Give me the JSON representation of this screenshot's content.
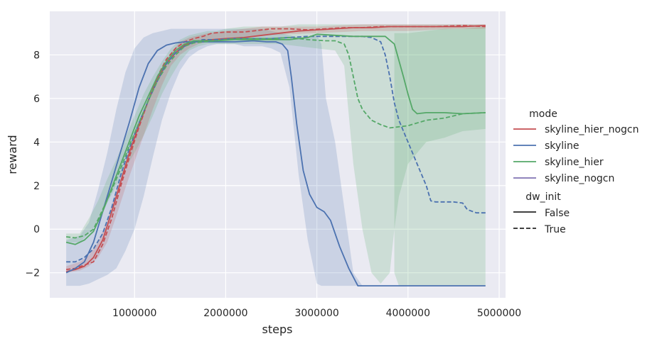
{
  "chart_data": {
    "type": "line",
    "xlabel": "steps",
    "ylabel": "reward",
    "xlim": [
      70000,
      5070000
    ],
    "ylim": [
      -3.15,
      10.0
    ],
    "xticks": [
      1000000,
      2000000,
      3000000,
      4000000,
      5000000
    ],
    "xtick_labels": [
      "1000000",
      "2000000",
      "3000000",
      "4000000",
      "5000000"
    ],
    "yticks": [
      -2,
      0,
      2,
      4,
      6,
      8
    ],
    "ytick_labels": [
      "−2",
      "0",
      "2",
      "4",
      "6",
      "8"
    ],
    "grid": true,
    "background": "#eaeaf2",
    "legend": {
      "placement": "right",
      "mode_title": "mode",
      "mode_entries": [
        {
          "label": "skyline_hier_nogcn",
          "color": "#c44e52"
        },
        {
          "label": "skyline",
          "color": "#4c72b0"
        },
        {
          "label": "skyline_hier",
          "color": "#55a868"
        },
        {
          "label": "skyline_nogcn",
          "color": "#8172b2"
        }
      ],
      "dw_init_title": "dw_init",
      "dw_init_entries": [
        {
          "label": "False",
          "style": "solid"
        },
        {
          "label": "True",
          "style": "dashed"
        }
      ]
    },
    "bands": [
      {
        "color": "#4c72b0",
        "x": [
          250000,
          400000,
          500000,
          600000,
          700000,
          800000,
          900000,
          1000000,
          1100000,
          1200000,
          1300000,
          1400000,
          1500000,
          1600000,
          1700000,
          1800000,
          1900000,
          2000000,
          2100000,
          2200000,
          2300000,
          2400000,
          2500000,
          2600000,
          2700000,
          2800000,
          2900000,
          3000000,
          3050000,
          3100000,
          3200000,
          3300000,
          3400000,
          3500000,
          3600000,
          3700000,
          3800000,
          3900000,
          4000000,
          4200000,
          4400000,
          4600000,
          4850000
        ],
        "lower": [
          -2.6,
          -2.6,
          -2.5,
          -2.3,
          -2.1,
          -1.8,
          -1.0,
          0.0,
          1.5,
          3.3,
          5.0,
          6.3,
          7.3,
          7.9,
          8.2,
          8.4,
          8.5,
          8.5,
          8.5,
          8.4,
          8.4,
          8.4,
          8.3,
          8.1,
          6.5,
          2.5,
          -0.5,
          -2.5,
          -2.6,
          -2.6,
          -2.6,
          -2.6,
          -2.6,
          -2.6,
          -2.6,
          -2.6,
          -2.6,
          -2.6,
          -2.6,
          -2.6,
          -2.6,
          -2.6,
          -2.6
        ],
        "upper": [
          -0.5,
          -0.3,
          0.3,
          1.8,
          3.5,
          5.5,
          7.2,
          8.3,
          8.8,
          9.0,
          9.1,
          9.2,
          9.2,
          9.2,
          9.2,
          9.2,
          9.2,
          9.2,
          9.2,
          9.2,
          9.2,
          9.2,
          9.1,
          9.0,
          8.9,
          8.8,
          8.8,
          8.9,
          8.5,
          6.0,
          4.0,
          1.0,
          -2.0,
          -2.6,
          -2.6,
          -2.6,
          -2.6,
          -2.6,
          -2.6,
          -2.6,
          -2.6,
          -2.6,
          -2.6
        ]
      },
      {
        "color": "#55a868",
        "x": [
          250000,
          400000,
          500000,
          600000,
          700000,
          800000,
          900000,
          1000000,
          1100000,
          1200000,
          1300000,
          1400000,
          1500000,
          1600000,
          1700000,
          1800000,
          1900000,
          2000000,
          2200000,
          2400000,
          2600000,
          2800000,
          3000000,
          3200000,
          3300000,
          3400000,
          3500000,
          3600000,
          3700000,
          3800000,
          3850000,
          3900000,
          4000000,
          4200000,
          4400000,
          4600000,
          4850000
        ],
        "lower": [
          -0.6,
          -0.6,
          -0.2,
          0.3,
          1.2,
          2.0,
          2.8,
          3.5,
          4.3,
          5.2,
          6.2,
          7.0,
          7.7,
          8.2,
          8.4,
          8.5,
          8.5,
          8.5,
          8.5,
          8.5,
          8.5,
          8.4,
          8.3,
          8.2,
          7.5,
          3.0,
          0.0,
          -2.0,
          -2.5,
          -2.0,
          0.0,
          1.5,
          3.0,
          4.0,
          4.2,
          4.5,
          4.6
        ],
        "upper": [
          -0.2,
          -0.2,
          0.5,
          1.3,
          2.3,
          3.2,
          4.2,
          5.2,
          6.2,
          7.0,
          7.7,
          8.3,
          8.7,
          8.9,
          9.0,
          9.1,
          9.1,
          9.2,
          9.3,
          9.3,
          9.3,
          9.4,
          9.4,
          9.4,
          9.4,
          9.4,
          9.4,
          9.4,
          9.4,
          9.4,
          9.4,
          9.4,
          9.4,
          9.4,
          9.4,
          9.4,
          9.4
        ]
      },
      {
        "color": "#55a868",
        "x": [
          3850000,
          3900000,
          4000000,
          4200000,
          4400000,
          4600000,
          4850000
        ],
        "lower": [
          -2.0,
          -2.6,
          -2.6,
          -2.6,
          -2.6,
          -2.6,
          -2.6
        ],
        "upper": [
          9.0,
          9.0,
          9.0,
          9.1,
          9.2,
          9.2,
          9.3
        ]
      },
      {
        "color": "#c44e52",
        "x": [
          250000,
          400000,
          500000,
          600000,
          700000,
          800000,
          900000,
          1000000,
          1100000,
          1200000,
          1300000,
          1400000,
          1500000,
          1600000,
          1700000,
          1800000,
          2000000,
          2400000,
          3000000,
          3500000,
          4000000,
          4500000,
          4850000
        ],
        "lower": [
          -2.0,
          -1.9,
          -1.7,
          -1.3,
          -0.6,
          0.6,
          1.9,
          3.1,
          4.3,
          5.5,
          6.6,
          7.5,
          8.0,
          8.3,
          8.5,
          8.6,
          8.7,
          8.9,
          9.0,
          9.1,
          9.1,
          9.2,
          9.2
        ],
        "upper": [
          -1.7,
          -1.5,
          -1.2,
          -0.6,
          0.4,
          1.8,
          3.0,
          4.2,
          5.3,
          6.4,
          7.4,
          8.1,
          8.6,
          8.8,
          8.9,
          9.0,
          9.1,
          9.3,
          9.3,
          9.4,
          9.4,
          9.4,
          9.4
        ]
      }
    ],
    "series": [
      {
        "mode": "skyline_hier_nogcn",
        "dw_init": "False",
        "color": "#c44e52",
        "dash": false,
        "x": [
          250000,
          350000,
          450000,
          550000,
          650000,
          750000,
          850000,
          950000,
          1050000,
          1150000,
          1250000,
          1350000,
          1450000,
          1550000,
          1650000,
          1750000,
          1850000,
          2000000,
          2200000,
          2400000,
          2600000,
          2800000,
          3000000,
          3200000,
          3400000,
          3600000,
          3800000,
          4000000,
          4200000,
          4400000,
          4600000,
          4850000
        ],
        "y": [
          -1.95,
          -1.85,
          -1.7,
          -1.3,
          -0.5,
          0.8,
          2.2,
          3.6,
          4.8,
          5.9,
          6.9,
          7.6,
          8.1,
          8.45,
          8.6,
          8.65,
          8.7,
          8.75,
          8.8,
          8.9,
          9.0,
          9.1,
          9.15,
          9.2,
          9.25,
          9.25,
          9.3,
          9.3,
          9.3,
          9.3,
          9.3,
          9.35
        ]
      },
      {
        "mode": "skyline_hier_nogcn",
        "dw_init": "True",
        "color": "#c44e52",
        "dash": true,
        "x": [
          250000,
          350000,
          450000,
          550000,
          650000,
          750000,
          850000,
          950000,
          1050000,
          1150000,
          1250000,
          1350000,
          1450000,
          1550000,
          1650000,
          1750000,
          1850000,
          2000000,
          2200000,
          2400000,
          2500000,
          2700000,
          2900000,
          3100000,
          3300000,
          3500000,
          3700000,
          4000000,
          4300000,
          4600000,
          4850000
        ],
        "y": [
          -1.85,
          -1.8,
          -1.65,
          -1.5,
          -0.7,
          0.5,
          2.0,
          3.4,
          4.7,
          5.9,
          7.0,
          7.8,
          8.3,
          8.6,
          8.75,
          8.85,
          9.0,
          9.05,
          9.05,
          9.15,
          9.2,
          9.2,
          9.15,
          9.2,
          9.25,
          9.25,
          9.3,
          9.3,
          9.3,
          9.35,
          9.3
        ]
      },
      {
        "mode": "skyline",
        "dw_init": "False",
        "color": "#4c72b0",
        "dash": false,
        "x": [
          250000,
          350000,
          450000,
          550000,
          650000,
          750000,
          850000,
          950000,
          1050000,
          1150000,
          1250000,
          1350000,
          1450000,
          1550000,
          1650000,
          1750000,
          1900000,
          2100000,
          2300000,
          2450000,
          2550000,
          2620000,
          2680000,
          2720000,
          2780000,
          2850000,
          2920000,
          3000000,
          3080000,
          3150000,
          3250000,
          3350000,
          3450000,
          3600000,
          3800000,
          4000000,
          4200000,
          4400000,
          4600000,
          4850000
        ],
        "y": [
          -2.0,
          -1.8,
          -1.5,
          -0.6,
          0.8,
          2.2,
          3.6,
          5.0,
          6.5,
          7.6,
          8.2,
          8.45,
          8.55,
          8.6,
          8.6,
          8.6,
          8.6,
          8.6,
          8.65,
          8.6,
          8.6,
          8.5,
          8.2,
          7.0,
          4.8,
          2.7,
          1.6,
          1.0,
          0.8,
          0.4,
          -0.8,
          -1.8,
          -2.6,
          -2.6,
          -2.6,
          -2.6,
          -2.6,
          -2.6,
          -2.6,
          -2.6
        ]
      },
      {
        "mode": "skyline",
        "dw_init": "True",
        "color": "#4c72b0",
        "dash": true,
        "x": [
          250000,
          350000,
          450000,
          550000,
          650000,
          750000,
          850000,
          950000,
          1050000,
          1150000,
          1250000,
          1350000,
          1450000,
          1550000,
          1650000,
          1750000,
          1900000,
          2100000,
          2300000,
          2500000,
          2700000,
          2900000,
          3100000,
          3300000,
          3500000,
          3600000,
          3700000,
          3750000,
          3800000,
          3850000,
          3900000,
          4000000,
          4100000,
          4200000,
          4250000,
          4300000,
          4400000,
          4500000,
          4600000,
          4650000,
          4750000,
          4850000
        ],
        "y": [
          -1.5,
          -1.5,
          -1.3,
          -0.9,
          -0.2,
          1.0,
          2.5,
          3.8,
          4.9,
          5.9,
          6.8,
          7.6,
          8.1,
          8.4,
          8.6,
          8.7,
          8.7,
          8.75,
          8.75,
          8.75,
          8.8,
          8.85,
          8.85,
          8.85,
          8.85,
          8.8,
          8.6,
          8.0,
          7.0,
          5.8,
          5.0,
          4.0,
          3.0,
          2.0,
          1.3,
          1.25,
          1.25,
          1.25,
          1.2,
          0.9,
          0.75,
          0.75
        ]
      },
      {
        "mode": "skyline_hier",
        "dw_init": "False",
        "color": "#55a868",
        "dash": false,
        "x": [
          250000,
          350000,
          450000,
          550000,
          650000,
          750000,
          850000,
          950000,
          1050000,
          1150000,
          1250000,
          1350000,
          1450000,
          1550000,
          1650000,
          1750000,
          1900000,
          2100000,
          2300000,
          2500000,
          2700000,
          2900000,
          3000000,
          3200000,
          3400000,
          3600000,
          3750000,
          3850000,
          3950000,
          4000000,
          4050000,
          4100000,
          4200000,
          4400000,
          4600000,
          4850000
        ],
        "y": [
          -0.6,
          -0.7,
          -0.5,
          -0.1,
          0.8,
          1.9,
          3.0,
          4.1,
          5.2,
          6.1,
          7.0,
          7.7,
          8.2,
          8.5,
          8.65,
          8.65,
          8.65,
          8.7,
          8.7,
          8.7,
          8.7,
          8.8,
          8.95,
          8.9,
          8.85,
          8.85,
          8.85,
          8.5,
          7.0,
          6.2,
          5.5,
          5.3,
          5.35,
          5.35,
          5.3,
          5.35
        ]
      },
      {
        "mode": "skyline_hier",
        "dw_init": "True",
        "color": "#55a868",
        "dash": true,
        "x": [
          250000,
          350000,
          450000,
          550000,
          650000,
          750000,
          850000,
          950000,
          1050000,
          1150000,
          1250000,
          1350000,
          1450000,
          1550000,
          1650000,
          1750000,
          1900000,
          2100000,
          2300000,
          2500000,
          2700000,
          2900000,
          3100000,
          3200000,
          3300000,
          3350000,
          3400000,
          3450000,
          3500000,
          3600000,
          3700000,
          3800000,
          4000000,
          4200000,
          4400000,
          4600000,
          4850000
        ],
        "y": [
          -0.35,
          -0.4,
          -0.3,
          0.0,
          0.9,
          1.8,
          2.8,
          3.9,
          4.9,
          5.9,
          6.8,
          7.5,
          8.0,
          8.4,
          8.55,
          8.6,
          8.65,
          8.75,
          8.75,
          8.75,
          8.8,
          8.7,
          8.65,
          8.65,
          8.5,
          8.0,
          7.0,
          6.0,
          5.5,
          5.0,
          4.8,
          4.65,
          4.75,
          5.0,
          5.1,
          5.3,
          5.35
        ]
      }
    ]
  }
}
